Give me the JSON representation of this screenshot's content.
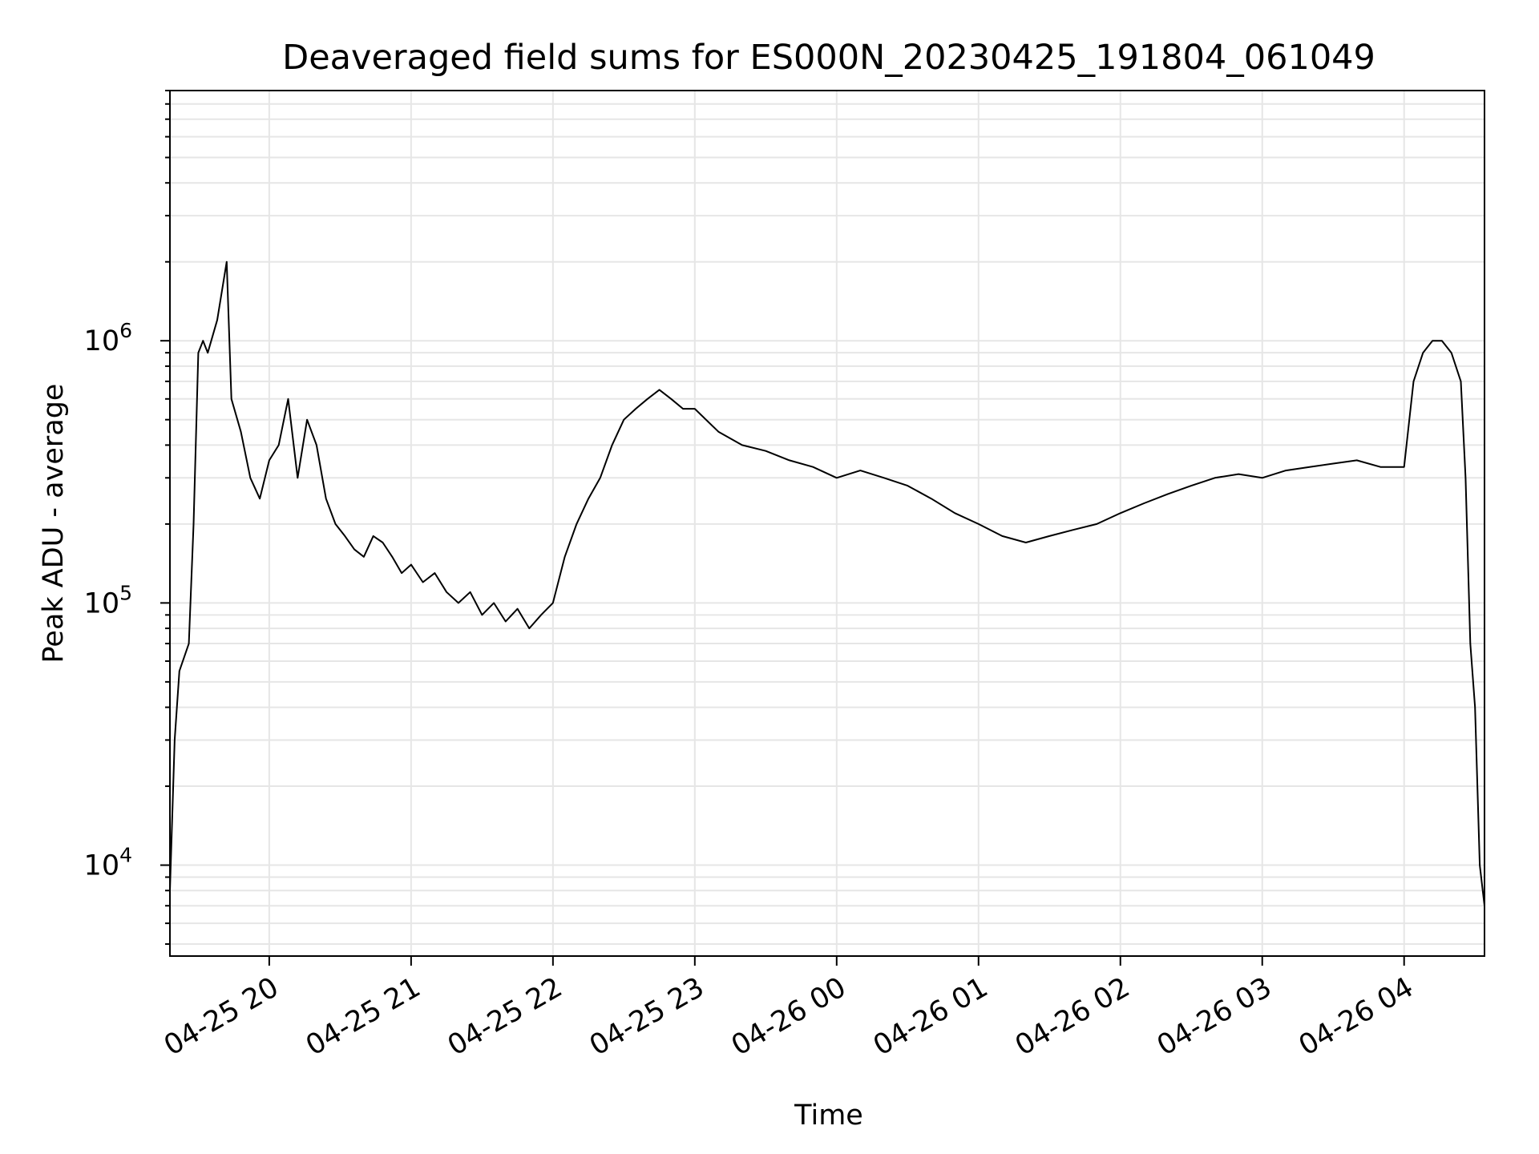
{
  "chart_data": {
    "type": "line",
    "title": "Deaveraged field sums for ES000N_20230425_191804_061049",
    "xlabel": "Time",
    "ylabel": "Peak ADU - average",
    "yscale": "log",
    "grid": true,
    "line_color": "#000000",
    "grid_color": "#e6e6e6",
    "xlim": [
      "2023-04-25 19:18",
      "2023-04-26 04:34"
    ],
    "ylim": [
      4500,
      9000000
    ],
    "x_ticks": [
      {
        "value": "2023-04-25 20:00",
        "label": "04-25 20"
      },
      {
        "value": "2023-04-25 21:00",
        "label": "04-25 21"
      },
      {
        "value": "2023-04-25 22:00",
        "label": "04-25 22"
      },
      {
        "value": "2023-04-25 23:00",
        "label": "04-25 23"
      },
      {
        "value": "2023-04-26 00:00",
        "label": "04-26 00"
      },
      {
        "value": "2023-04-26 01:00",
        "label": "04-26 01"
      },
      {
        "value": "2023-04-26 02:00",
        "label": "04-26 02"
      },
      {
        "value": "2023-04-26 03:00",
        "label": "04-26 03"
      },
      {
        "value": "2023-04-26 04:00",
        "label": "04-26 04"
      }
    ],
    "y_ticks": [
      {
        "value": 10000,
        "base": "10",
        "exp": "4"
      },
      {
        "value": 100000,
        "base": "10",
        "exp": "5"
      },
      {
        "value": 1000000,
        "base": "10",
        "exp": "6"
      }
    ],
    "series": [
      {
        "x": [
          "2023-04-25 19:18",
          "2023-04-25 19:20",
          "2023-04-25 19:22",
          "2023-04-25 19:26",
          "2023-04-25 19:28",
          "2023-04-25 19:30",
          "2023-04-25 19:32",
          "2023-04-25 19:34",
          "2023-04-25 19:38",
          "2023-04-25 19:42",
          "2023-04-25 19:44",
          "2023-04-25 19:48",
          "2023-04-25 19:52",
          "2023-04-25 19:56",
          "2023-04-25 20:00",
          "2023-04-25 20:04",
          "2023-04-25 20:08",
          "2023-04-25 20:12",
          "2023-04-25 20:16",
          "2023-04-25 20:20",
          "2023-04-25 20:24",
          "2023-04-25 20:28",
          "2023-04-25 20:32",
          "2023-04-25 20:36",
          "2023-04-25 20:40",
          "2023-04-25 20:44",
          "2023-04-25 20:48",
          "2023-04-25 20:52",
          "2023-04-25 20:56",
          "2023-04-25 21:00",
          "2023-04-25 21:05",
          "2023-04-25 21:10",
          "2023-04-25 21:15",
          "2023-04-25 21:20",
          "2023-04-25 21:25",
          "2023-04-25 21:30",
          "2023-04-25 21:35",
          "2023-04-25 21:40",
          "2023-04-25 21:45",
          "2023-04-25 21:50",
          "2023-04-25 21:55",
          "2023-04-25 22:00",
          "2023-04-25 22:05",
          "2023-04-25 22:10",
          "2023-04-25 22:15",
          "2023-04-25 22:20",
          "2023-04-25 22:25",
          "2023-04-25 22:30",
          "2023-04-25 22:35",
          "2023-04-25 22:40",
          "2023-04-25 22:45",
          "2023-04-25 22:50",
          "2023-04-25 22:55",
          "2023-04-25 23:00",
          "2023-04-25 23:10",
          "2023-04-25 23:20",
          "2023-04-25 23:30",
          "2023-04-25 23:40",
          "2023-04-25 23:50",
          "2023-04-26 00:00",
          "2023-04-26 00:10",
          "2023-04-26 00:20",
          "2023-04-26 00:30",
          "2023-04-26 00:40",
          "2023-04-26 00:50",
          "2023-04-26 01:00",
          "2023-04-26 01:10",
          "2023-04-26 01:20",
          "2023-04-26 01:30",
          "2023-04-26 01:40",
          "2023-04-26 01:50",
          "2023-04-26 02:00",
          "2023-04-26 02:10",
          "2023-04-26 02:20",
          "2023-04-26 02:30",
          "2023-04-26 02:40",
          "2023-04-26 02:50",
          "2023-04-26 03:00",
          "2023-04-26 03:10",
          "2023-04-26 03:20",
          "2023-04-26 03:30",
          "2023-04-26 03:40",
          "2023-04-26 03:50",
          "2023-04-26 04:00",
          "2023-04-26 04:04",
          "2023-04-26 04:08",
          "2023-04-26 04:12",
          "2023-04-26 04:16",
          "2023-04-26 04:20",
          "2023-04-26 04:24",
          "2023-04-26 04:26",
          "2023-04-26 04:28",
          "2023-04-26 04:30",
          "2023-04-26 04:32",
          "2023-04-26 04:34"
        ],
        "y": [
          8000,
          30000,
          55000,
          70000,
          200000,
          900000,
          1000000,
          900000,
          1200000,
          2000000,
          600000,
          450000,
          300000,
          250000,
          350000,
          400000,
          600000,
          300000,
          500000,
          400000,
          250000,
          200000,
          180000,
          160000,
          150000,
          180000,
          170000,
          150000,
          130000,
          140000,
          120000,
          130000,
          110000,
          100000,
          110000,
          90000,
          100000,
          85000,
          95000,
          80000,
          90000,
          100000,
          150000,
          200000,
          250000,
          300000,
          400000,
          500000,
          550000,
          600000,
          650000,
          600000,
          550000,
          550000,
          450000,
          400000,
          380000,
          350000,
          330000,
          300000,
          320000,
          300000,
          280000,
          250000,
          220000,
          200000,
          180000,
          170000,
          180000,
          190000,
          200000,
          220000,
          240000,
          260000,
          280000,
          300000,
          310000,
          300000,
          320000,
          330000,
          340000,
          350000,
          330000,
          330000,
          700000,
          900000,
          1000000,
          1000000,
          900000,
          700000,
          300000,
          70000,
          40000,
          10000,
          7000
        ]
      }
    ]
  }
}
